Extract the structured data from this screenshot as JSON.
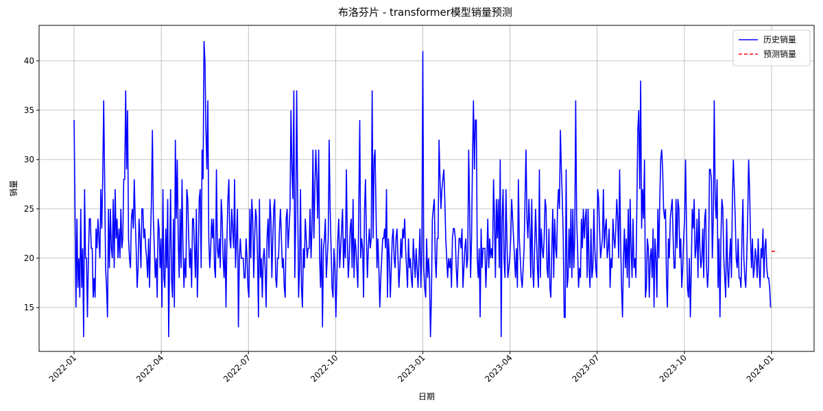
{
  "chart_data": {
    "type": "line",
    "title": "布洛芬片 - transformer模型销量预测",
    "xlabel": "日期",
    "ylabel": "销量",
    "xticks": [
      "2022-01",
      "2022-04",
      "2022-07",
      "2022-10",
      "2023-01",
      "2023-04",
      "2023-07",
      "2023-10",
      "2024-01"
    ],
    "ylim": [
      10.55,
      43.6
    ],
    "yticks": [
      15,
      20,
      25,
      30,
      35,
      40
    ],
    "grid": true,
    "legend": "upper right",
    "series": [
      {
        "name": "历史销量",
        "color": "#0000ff",
        "style": "solid",
        "values": [
          34,
          25,
          15,
          24,
          17,
          20,
          16,
          25,
          17,
          21,
          12,
          27,
          20,
          20,
          14,
          20,
          24,
          24,
          21,
          21,
          16,
          18,
          16,
          23,
          21,
          24,
          22,
          20,
          27,
          23,
          28,
          36,
          28,
          19,
          17,
          14,
          25,
          19,
          25,
          21,
          20,
          26,
          19,
          27,
          22,
          24,
          20,
          23,
          20,
          25,
          21,
          22,
          28,
          28,
          37,
          29,
          35,
          22,
          20,
          19,
          24,
          25,
          23,
          28,
          24,
          21,
          17,
          19,
          24,
          22,
          19,
          25,
          25,
          22,
          23,
          21,
          20,
          18,
          22,
          17,
          22,
          26,
          33,
          24,
          21,
          18,
          20,
          16,
          24,
          23,
          19,
          22,
          15,
          27,
          18,
          17,
          23,
          19,
          26,
          12,
          20,
          27,
          18,
          16,
          24,
          15,
          32,
          24,
          30,
          22,
          18,
          25,
          19,
          28,
          21,
          17,
          20,
          18,
          27,
          26,
          22,
          19,
          21,
          17,
          24,
          24,
          21,
          18,
          25,
          16,
          20,
          26,
          27,
          19,
          31,
          28,
          42,
          40,
          33,
          29,
          36,
          22,
          19,
          21,
          24,
          22,
          24,
          19,
          18,
          29,
          21,
          20,
          22,
          19,
          26,
          24,
          20,
          18,
          22,
          15,
          22,
          26,
          28,
          22,
          21,
          25,
          23,
          21,
          28,
          19,
          22,
          25,
          13,
          20,
          22,
          20,
          20,
          20,
          18,
          18,
          22,
          20,
          17,
          16,
          25,
          20,
          26,
          24,
          18,
          22,
          25,
          24,
          20,
          14,
          26,
          18,
          20,
          16,
          20,
          21,
          19,
          15,
          22,
          24,
          20,
          26,
          24,
          18,
          22,
          25,
          26,
          18,
          17,
          20,
          20,
          23,
          25,
          22,
          19,
          20,
          17,
          16,
          24,
          25,
          21,
          23,
          25,
          35,
          29,
          26,
          37,
          18,
          24,
          37,
          26,
          16,
          19,
          27,
          17,
          15,
          21,
          19,
          24,
          22,
          20,
          21,
          21,
          25,
          20,
          23,
          31,
          22,
          27,
          31,
          28,
          24,
          31,
          20,
          17,
          22,
          13,
          21,
          22,
          24,
          18,
          20,
          22,
          32,
          25,
          21,
          17,
          16,
          21,
          19,
          14,
          18,
          22,
          24,
          19,
          21,
          23,
          25,
          19,
          22,
          20,
          29,
          22,
          18,
          20,
          23,
          24,
          19,
          26,
          18,
          22,
          21,
          19,
          17,
          25,
          34,
          20,
          22,
          21,
          16,
          25,
          28,
          22,
          18,
          21,
          23,
          21,
          22,
          37,
          22,
          30,
          31,
          25,
          19,
          22,
          19,
          15,
          18,
          20,
          22,
          22,
          23,
          21,
          27,
          16,
          22,
          20,
          16,
          19,
          22,
          23,
          20,
          19,
          22,
          23,
          20,
          17,
          19,
          22,
          20,
          23,
          22,
          24,
          21,
          19,
          17,
          22,
          19,
          20,
          18,
          17,
          22,
          20,
          18,
          21,
          19,
          17,
          20,
          23,
          17,
          21,
          41,
          19,
          17,
          16,
          22,
          18,
          20,
          18,
          12,
          16,
          24,
          25,
          26,
          20,
          18,
          22,
          22,
          32,
          28,
          25,
          27,
          28,
          29,
          26,
          22,
          20,
          18,
          20,
          19,
          20,
          17,
          22,
          23,
          23,
          22,
          19,
          17,
          20,
          22,
          22,
          21,
          23,
          17,
          19,
          21,
          22,
          19,
          20,
          31,
          25,
          18,
          22,
          30,
          36,
          29,
          34,
          34,
          20,
          18,
          21,
          14,
          23,
          19,
          21,
          21,
          21,
          17,
          20,
          24,
          19,
          22,
          20,
          21,
          20,
          28,
          24,
          18,
          26,
          22,
          26,
          19,
          30,
          12,
          24,
          27,
          20,
          18,
          27,
          22,
          18,
          19,
          20,
          22,
          26,
          24,
          22,
          20,
          18,
          21,
          17,
          28,
          22,
          20,
          18,
          17,
          19,
          21,
          26,
          31,
          24,
          22,
          26,
          23,
          18,
          26,
          19,
          17,
          21,
          25,
          22,
          19,
          17,
          29,
          18,
          23,
          21,
          20,
          22,
          26,
          25,
          19,
          18,
          23,
          17,
          16,
          21,
          25,
          18,
          24,
          21,
          20,
          25,
          27,
          25,
          33,
          29,
          26,
          22,
          14,
          14,
          29,
          17,
          18,
          23,
          19,
          25,
          18,
          25,
          19,
          22,
          36,
          24,
          21,
          17,
          19,
          18,
          24,
          21,
          25,
          22,
          24,
          25,
          18,
          25,
          19,
          17,
          23,
          18,
          19,
          25,
          21,
          19,
          18,
          27,
          26,
          23,
          20,
          21,
          22,
          27,
          21,
          23,
          24,
          20,
          21,
          23,
          17,
          20,
          19,
          24,
          22,
          21,
          23,
          26,
          24,
          20,
          29,
          22,
          17,
          14,
          20,
          23,
          19,
          22,
          18,
          25,
          17,
          26,
          21,
          18,
          24,
          19,
          20,
          18,
          25,
          33,
          35,
          27,
          38,
          23,
          27,
          24,
          30,
          16,
          17,
          22,
          21,
          16,
          20,
          21,
          18,
          23,
          15,
          22,
          20,
          16,
          25,
          20,
          26,
          30,
          31,
          29,
          25,
          24,
          25,
          18,
          15,
          22,
          20,
          24,
          25,
          26,
          22,
          19,
          19,
          26,
          21,
          26,
          25,
          20,
          22,
          17,
          19,
          22,
          24,
          30,
          23,
          17,
          16,
          20,
          14,
          19,
          25,
          23,
          26,
          20,
          21,
          24,
          18,
          25,
          21,
          19,
          20,
          23,
          18,
          24,
          25,
          19,
          17,
          19,
          29,
          29,
          28,
          20,
          24,
          36,
          26,
          24,
          28,
          17,
          22,
          14,
          22,
          26,
          25,
          20,
          18,
          16,
          24,
          19,
          17,
          20,
          22,
          18,
          26,
          30,
          27,
          24,
          20,
          19,
          22,
          18,
          18,
          17,
          22,
          26,
          20,
          18,
          17,
          20,
          24,
          30,
          27,
          22,
          19,
          22,
          18,
          19,
          21,
          20,
          18,
          22,
          19,
          17,
          21,
          20,
          23,
          18,
          21,
          22,
          19,
          18,
          18,
          17,
          15
        ]
      },
      {
        "name": "预测销量",
        "color": "#ff0000",
        "style": "dashed",
        "values": [
          20.7,
          20.7,
          20.7,
          20.7,
          20.7,
          20.7,
          20.7
        ]
      }
    ]
  }
}
